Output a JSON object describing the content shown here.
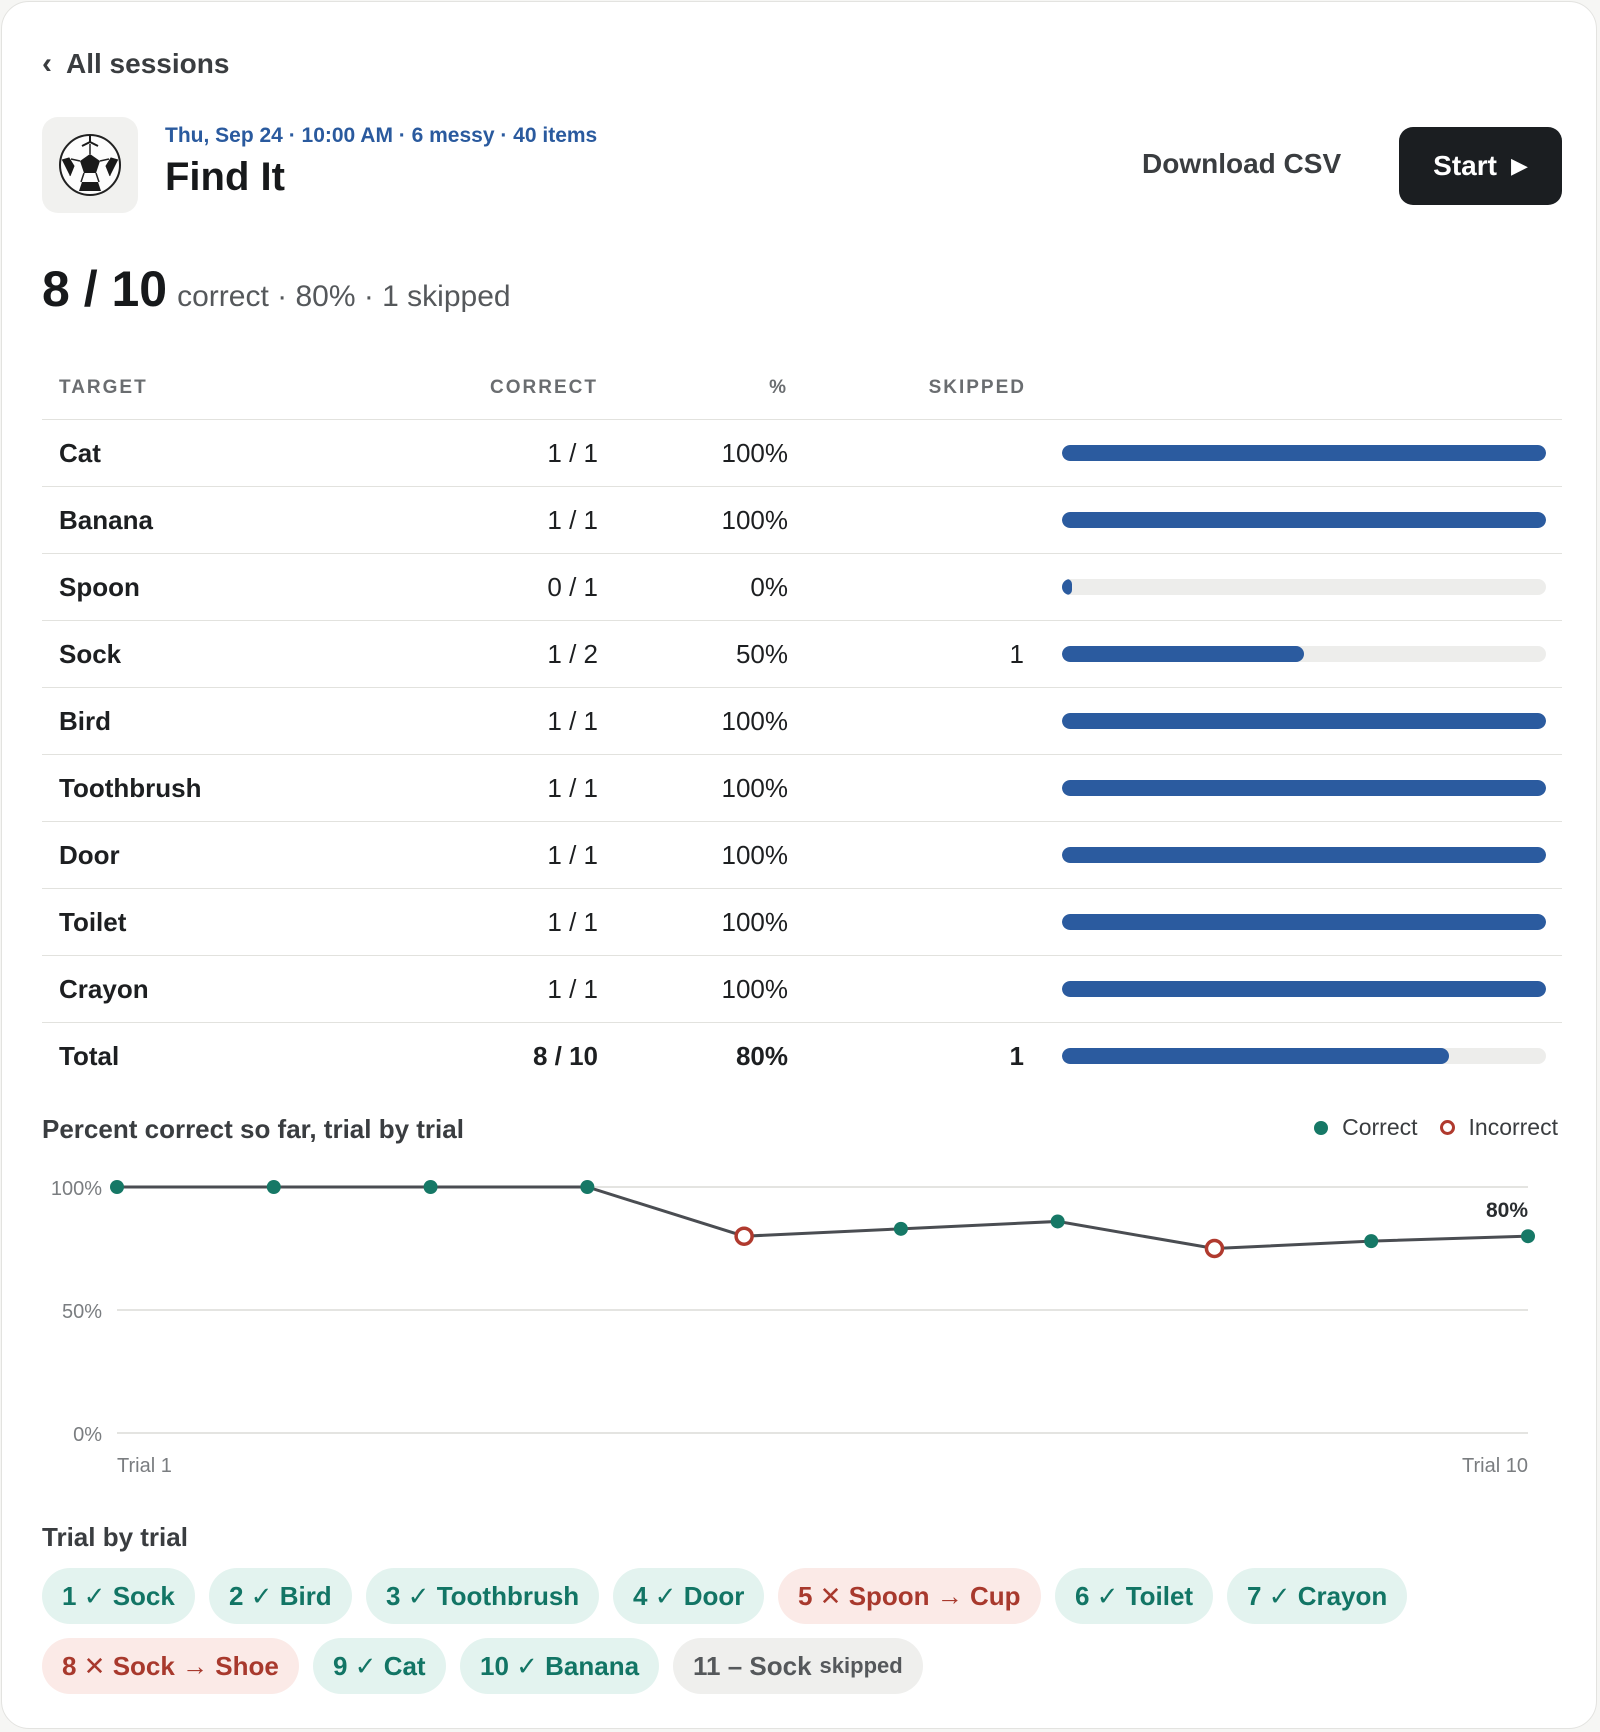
{
  "nav": {
    "back_label": "All sessions"
  },
  "header": {
    "meta": "Thu, Sep 24 · 10:00 AM · 6 messy · 40 items",
    "title": "Find It",
    "download_label": "Download CSV",
    "start_label": "Start",
    "start_icon": "▶",
    "ball_icon": "⚽"
  },
  "summary": {
    "score": "8 / 10",
    "details": "correct · 80% · 1 skipped"
  },
  "table": {
    "headers": {
      "target": "TARGET",
      "correct": "CORRECT",
      "pct": "%",
      "skipped": "SKIPPED"
    },
    "rows": [
      {
        "target": "Cat",
        "correct": "1 / 1",
        "pct": "100%",
        "skipped": "",
        "fraction": 1.0
      },
      {
        "target": "Banana",
        "correct": "1 / 1",
        "pct": "100%",
        "skipped": "",
        "fraction": 1.0
      },
      {
        "target": "Spoon",
        "correct": "0 / 1",
        "pct": "0%",
        "skipped": "",
        "fraction": 0.0
      },
      {
        "target": "Sock",
        "correct": "1 / 2",
        "pct": "50%",
        "skipped": "1",
        "fraction": 0.5
      },
      {
        "target": "Bird",
        "correct": "1 / 1",
        "pct": "100%",
        "skipped": "",
        "fraction": 1.0
      },
      {
        "target": "Toothbrush",
        "correct": "1 / 1",
        "pct": "100%",
        "skipped": "",
        "fraction": 1.0
      },
      {
        "target": "Door",
        "correct": "1 / 1",
        "pct": "100%",
        "skipped": "",
        "fraction": 1.0
      },
      {
        "target": "Toilet",
        "correct": "1 / 1",
        "pct": "100%",
        "skipped": "",
        "fraction": 1.0
      },
      {
        "target": "Crayon",
        "correct": "1 / 1",
        "pct": "100%",
        "skipped": "",
        "fraction": 1.0
      }
    ],
    "total": {
      "target": "Total",
      "correct": "8 / 10",
      "pct": "80%",
      "skipped": "1",
      "fraction": 0.8
    }
  },
  "colors": {
    "bar": "#2b5b9f",
    "track": "#ededeb",
    "correct": "#167866",
    "incorrect": "#b03a2e",
    "line": "#4a4d52"
  },
  "chart_data": {
    "type": "line",
    "title": "Percent correct so far, trial by trial",
    "legend": [
      "Correct",
      "Incorrect"
    ],
    "legend_position": "top-right",
    "yticks": [
      "100%",
      "50%",
      "0%"
    ],
    "xlabels": [
      "Trial 1",
      "Trial 10"
    ],
    "ylim": [
      0,
      100
    ],
    "points": [
      {
        "trial": 1,
        "value": 100,
        "result": "correct"
      },
      {
        "trial": 2,
        "value": 100,
        "result": "correct"
      },
      {
        "trial": 3,
        "value": 100,
        "result": "correct"
      },
      {
        "trial": 4,
        "value": 100,
        "result": "correct"
      },
      {
        "trial": 5,
        "value": 80,
        "result": "incorrect"
      },
      {
        "trial": 6,
        "value": 83,
        "result": "correct"
      },
      {
        "trial": 7,
        "value": 86,
        "result": "correct"
      },
      {
        "trial": 8,
        "value": 75,
        "result": "incorrect"
      },
      {
        "trial": 9,
        "value": 78,
        "result": "correct"
      },
      {
        "trial": 10,
        "value": 80,
        "result": "correct"
      }
    ],
    "end_label": "80%",
    "grid": true
  },
  "trials": {
    "title": "Trial by trial",
    "items": [
      {
        "label": "1 ✓ Sock",
        "status": "ok"
      },
      {
        "label": "2 ✓ Bird",
        "status": "ok"
      },
      {
        "label": "3 ✓ Toothbrush",
        "status": "ok"
      },
      {
        "label": "4 ✓ Door",
        "status": "ok"
      },
      {
        "label": "5 ✕ Spoon → Cup",
        "status": "bad"
      },
      {
        "label": "6 ✓ Toilet",
        "status": "ok"
      },
      {
        "label": "7 ✓ Crayon",
        "status": "ok"
      },
      {
        "label": "8 ✕ Sock → Shoe",
        "status": "bad"
      },
      {
        "label": "9 ✓ Cat",
        "status": "ok"
      },
      {
        "label": "10 ✓ Banana",
        "status": "ok"
      },
      {
        "label": "11 – Sock",
        "small": "skipped",
        "status": "skip"
      }
    ]
  }
}
